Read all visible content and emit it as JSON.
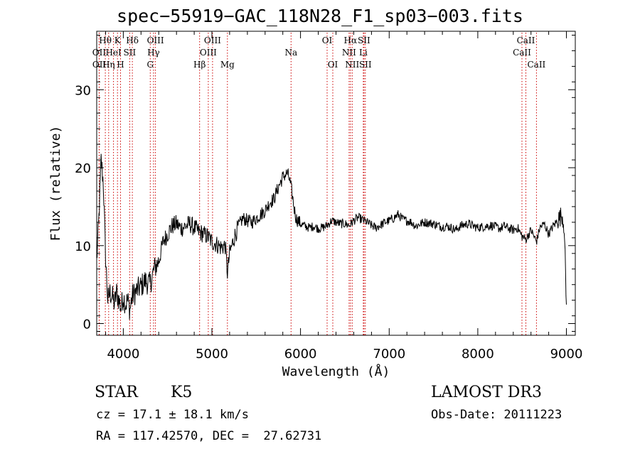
{
  "chart_data": {
    "type": "line",
    "title": "spec−55919−GAC_118N28_F1_sp03−003.fits",
    "xlabel": "Wavelength (Å)",
    "ylabel": "Flux (relative)",
    "xlim": [
      3700,
      9100
    ],
    "ylim": [
      -1.5,
      37.5
    ],
    "xticks": [
      4000,
      5000,
      6000,
      7000,
      8000,
      9000
    ],
    "yticks": [
      0,
      10,
      20,
      30
    ],
    "line_color": "#000000",
    "marker_color": "#cc0000",
    "series": [
      {
        "name": "spectrum",
        "points": [
          [
            3700,
            8.0
          ],
          [
            3725,
            13.5
          ],
          [
            3750,
            21.0
          ],
          [
            3775,
            18.0
          ],
          [
            3800,
            8.5
          ],
          [
            3825,
            3.0
          ],
          [
            3850,
            4.0
          ],
          [
            3875,
            3.5
          ],
          [
            3900,
            2.5
          ],
          [
            3925,
            4.0
          ],
          [
            3950,
            3.0
          ],
          [
            3975,
            2.0
          ],
          [
            4000,
            3.5
          ],
          [
            4025,
            2.5
          ],
          [
            4050,
            3.0
          ],
          [
            4075,
            1.8
          ],
          [
            4100,
            3.5
          ],
          [
            4150,
            4.2
          ],
          [
            4200,
            4.8
          ],
          [
            4250,
            5.5
          ],
          [
            4300,
            5.0
          ],
          [
            4350,
            7.0
          ],
          [
            4400,
            8.0
          ],
          [
            4450,
            10.5
          ],
          [
            4500,
            11.5
          ],
          [
            4550,
            12.5
          ],
          [
            4600,
            12.8
          ],
          [
            4650,
            12.2
          ],
          [
            4700,
            12.5
          ],
          [
            4750,
            12.8
          ],
          [
            4800,
            12.3
          ],
          [
            4850,
            11.8
          ],
          [
            4900,
            11.5
          ],
          [
            4950,
            11.2
          ],
          [
            5000,
            10.5
          ],
          [
            5050,
            10.2
          ],
          [
            5100,
            9.8
          ],
          [
            5150,
            10.0
          ],
          [
            5175,
            6.5
          ],
          [
            5200,
            9.0
          ],
          [
            5250,
            11.0
          ],
          [
            5300,
            12.5
          ],
          [
            5350,
            13.5
          ],
          [
            5400,
            13.2
          ],
          [
            5450,
            13.0
          ],
          [
            5500,
            13.5
          ],
          [
            5550,
            14.0
          ],
          [
            5600,
            14.5
          ],
          [
            5650,
            15.5
          ],
          [
            5700,
            16.0
          ],
          [
            5750,
            17.5
          ],
          [
            5800,
            18.8
          ],
          [
            5850,
            19.3
          ],
          [
            5875,
            18.5
          ],
          [
            5900,
            17.0
          ],
          [
            5925,
            15.0
          ],
          [
            5950,
            13.5
          ],
          [
            6000,
            12.8
          ],
          [
            6050,
            12.5
          ],
          [
            6100,
            12.3
          ],
          [
            6150,
            12.5
          ],
          [
            6200,
            12.2
          ],
          [
            6250,
            12.3
          ],
          [
            6300,
            12.6
          ],
          [
            6350,
            13.2
          ],
          [
            6400,
            13.0
          ],
          [
            6450,
            12.8
          ],
          [
            6500,
            12.8
          ],
          [
            6550,
            12.6
          ],
          [
            6600,
            13.2
          ],
          [
            6650,
            13.6
          ],
          [
            6700,
            13.3
          ],
          [
            6750,
            13.0
          ],
          [
            6800,
            12.6
          ],
          [
            6850,
            12.3
          ],
          [
            6900,
            12.6
          ],
          [
            6950,
            13.0
          ],
          [
            7000,
            13.2
          ],
          [
            7050,
            13.5
          ],
          [
            7100,
            14.0
          ],
          [
            7150,
            13.4
          ],
          [
            7200,
            13.2
          ],
          [
            7250,
            13.0
          ],
          [
            7300,
            12.5
          ],
          [
            7350,
            12.8
          ],
          [
            7400,
            13.0
          ],
          [
            7450,
            12.9
          ],
          [
            7500,
            12.8
          ],
          [
            7550,
            12.6
          ],
          [
            7600,
            12.4
          ],
          [
            7650,
            12.5
          ],
          [
            7700,
            12.3
          ],
          [
            7750,
            12.0
          ],
          [
            7800,
            12.5
          ],
          [
            7850,
            12.7
          ],
          [
            7900,
            12.8
          ],
          [
            7950,
            12.5
          ],
          [
            8000,
            12.3
          ],
          [
            8050,
            12.4
          ],
          [
            8100,
            12.5
          ],
          [
            8150,
            12.6
          ],
          [
            8200,
            12.4
          ],
          [
            8250,
            12.2
          ],
          [
            8300,
            12.5
          ],
          [
            8350,
            12.2
          ],
          [
            8400,
            12.0
          ],
          [
            8450,
            12.3
          ],
          [
            8498,
            11.2
          ],
          [
            8542,
            10.8
          ],
          [
            8600,
            12.0
          ],
          [
            8662,
            10.5
          ],
          [
            8700,
            12.3
          ],
          [
            8750,
            12.8
          ],
          [
            8800,
            11.5
          ],
          [
            8850,
            12.5
          ],
          [
            8900,
            13.2
          ],
          [
            8950,
            14.0
          ],
          [
            8975,
            12.5
          ],
          [
            9000,
            2.0
          ]
        ]
      }
    ],
    "line_markers": [
      {
        "label": "Hθ",
        "wavelength": 3797,
        "row": 0
      },
      {
        "label": "OII",
        "wavelength": 3727,
        "row": 1
      },
      {
        "label": "OII",
        "wavelength": 3729,
        "row": 2
      },
      {
        "label": "Hη",
        "wavelength": 3835,
        "row": 2
      },
      {
        "label": "HeI",
        "wavelength": 3889,
        "row": 1
      },
      {
        "label": "K",
        "wavelength": 3934,
        "row": 0
      },
      {
        "label": "H",
        "wavelength": 3969,
        "row": 2
      },
      {
        "label": "SII",
        "wavelength": 4072,
        "row": 1
      },
      {
        "label": "Hδ",
        "wavelength": 4102,
        "row": 0
      },
      {
        "label": "G",
        "wavelength": 4304,
        "row": 2
      },
      {
        "label": "Hγ",
        "wavelength": 4341,
        "row": 1
      },
      {
        "label": "OIII",
        "wavelength": 4363,
        "row": 0
      },
      {
        "label": "Hβ",
        "wavelength": 4861,
        "row": 2
      },
      {
        "label": "OIII",
        "wavelength": 4959,
        "row": 1
      },
      {
        "label": "OIII",
        "wavelength": 5007,
        "row": 0
      },
      {
        "label": "Mg",
        "wavelength": 5175,
        "row": 2
      },
      {
        "label": "Na",
        "wavelength": 5893,
        "row": 1
      },
      {
        "label": "OI",
        "wavelength": 6300,
        "row": 0
      },
      {
        "label": "OI",
        "wavelength": 6364,
        "row": 2
      },
      {
        "label": "NII",
        "wavelength": 6548,
        "row": 1
      },
      {
        "label": "Hα",
        "wavelength": 6563,
        "row": 0
      },
      {
        "label": "NII",
        "wavelength": 6583,
        "row": 2
      },
      {
        "label": "Li",
        "wavelength": 6708,
        "row": 1
      },
      {
        "label": "SII",
        "wavelength": 6716,
        "row": 0
      },
      {
        "label": "SII",
        "wavelength": 6731,
        "row": 2
      },
      {
        "label": "CaII",
        "wavelength": 8498,
        "row": 1
      },
      {
        "label": "CaII",
        "wavelength": 8542,
        "row": 0
      },
      {
        "label": "CaII",
        "wavelength": 8662,
        "row": 2
      }
    ]
  },
  "info": {
    "object_class": "STAR",
    "subclass": "K5",
    "survey": "LAMOST DR3",
    "redshift": "cz = 17.1 ± 18.1 km/s",
    "obs_date": "Obs-Date: 20111223",
    "coords": "RA = 117.42570, DEC =  27.62731"
  }
}
